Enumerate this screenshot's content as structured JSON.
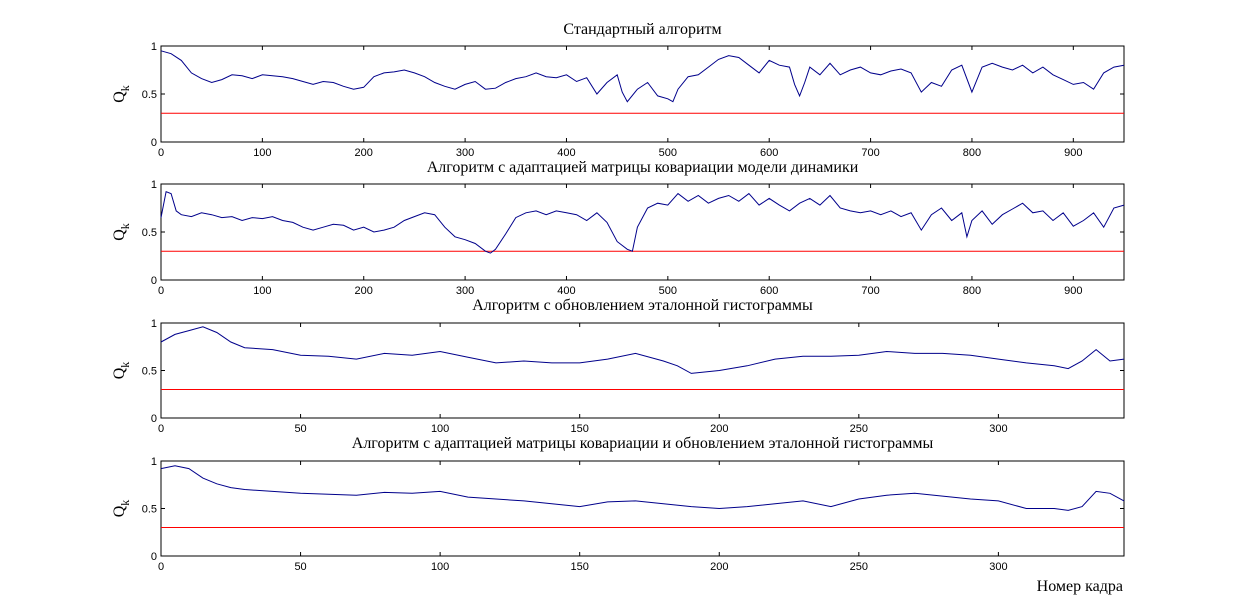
{
  "figure": {
    "xlabel": "Номер кадра"
  },
  "chart_data": [
    {
      "type": "line",
      "title": "Стандартный алгоритм",
      "ylabel_main": "Q",
      "ylabel_sub": "k",
      "xlim": [
        0,
        950
      ],
      "ylim": [
        0,
        1
      ],
      "xticks": [
        0,
        100,
        200,
        300,
        400,
        500,
        600,
        700,
        800,
        900
      ],
      "yticks": [
        0,
        0.5,
        1
      ],
      "threshold": {
        "y": 0.3,
        "color": "#ff0000"
      },
      "series": [
        {
          "color": "#00008b",
          "x": [
            0,
            10,
            20,
            30,
            40,
            50,
            60,
            70,
            80,
            90,
            100,
            110,
            120,
            130,
            140,
            150,
            160,
            170,
            180,
            190,
            200,
            210,
            220,
            230,
            240,
            250,
            260,
            270,
            280,
            290,
            300,
            310,
            320,
            330,
            340,
            350,
            360,
            370,
            380,
            390,
            400,
            410,
            420,
            430,
            440,
            450,
            455,
            460,
            470,
            480,
            490,
            500,
            505,
            510,
            520,
            530,
            540,
            550,
            560,
            570,
            580,
            590,
            600,
            610,
            620,
            625,
            630,
            635,
            640,
            650,
            660,
            670,
            680,
            690,
            700,
            710,
            720,
            730,
            740,
            750,
            760,
            770,
            780,
            790,
            800,
            810,
            820,
            830,
            840,
            850,
            860,
            870,
            880,
            890,
            900,
            910,
            920,
            930,
            940,
            950
          ],
          "y": [
            0.95,
            0.92,
            0.85,
            0.72,
            0.66,
            0.62,
            0.65,
            0.7,
            0.69,
            0.66,
            0.7,
            0.69,
            0.68,
            0.66,
            0.63,
            0.6,
            0.63,
            0.62,
            0.58,
            0.55,
            0.57,
            0.68,
            0.72,
            0.73,
            0.75,
            0.72,
            0.68,
            0.62,
            0.58,
            0.55,
            0.6,
            0.63,
            0.55,
            0.56,
            0.62,
            0.66,
            0.68,
            0.72,
            0.68,
            0.67,
            0.7,
            0.63,
            0.67,
            0.5,
            0.62,
            0.7,
            0.52,
            0.42,
            0.55,
            0.62,
            0.48,
            0.45,
            0.42,
            0.55,
            0.68,
            0.7,
            0.78,
            0.86,
            0.9,
            0.88,
            0.8,
            0.72,
            0.85,
            0.8,
            0.78,
            0.6,
            0.48,
            0.62,
            0.78,
            0.7,
            0.82,
            0.7,
            0.75,
            0.78,
            0.72,
            0.7,
            0.74,
            0.76,
            0.72,
            0.52,
            0.62,
            0.58,
            0.75,
            0.8,
            0.52,
            0.78,
            0.82,
            0.78,
            0.75,
            0.8,
            0.72,
            0.78,
            0.7,
            0.65,
            0.6,
            0.62,
            0.55,
            0.72,
            0.78,
            0.8
          ]
        }
      ]
    },
    {
      "type": "line",
      "title": "Алгоритм с адаптацией матрицы ковариации модели динамики",
      "ylabel_main": "Q",
      "ylabel_sub": "k",
      "xlim": [
        0,
        950
      ],
      "ylim": [
        0,
        1
      ],
      "xticks": [
        0,
        100,
        200,
        300,
        400,
        500,
        600,
        700,
        800,
        900
      ],
      "yticks": [
        0,
        0.5,
        1
      ],
      "threshold": {
        "y": 0.3,
        "color": "#ff0000"
      },
      "series": [
        {
          "color": "#00008b",
          "x": [
            0,
            5,
            10,
            15,
            20,
            30,
            40,
            50,
            60,
            70,
            80,
            90,
            100,
            110,
            120,
            130,
            140,
            150,
            160,
            170,
            180,
            190,
            200,
            210,
            220,
            230,
            240,
            250,
            260,
            270,
            280,
            290,
            300,
            310,
            320,
            325,
            330,
            340,
            350,
            360,
            370,
            380,
            390,
            400,
            410,
            420,
            430,
            440,
            450,
            460,
            465,
            470,
            480,
            490,
            500,
            510,
            520,
            530,
            540,
            550,
            560,
            570,
            580,
            590,
            600,
            610,
            620,
            630,
            640,
            650,
            660,
            670,
            680,
            690,
            700,
            710,
            720,
            730,
            740,
            750,
            760,
            770,
            780,
            790,
            795,
            800,
            810,
            820,
            830,
            840,
            850,
            860,
            870,
            880,
            890,
            900,
            910,
            920,
            930,
            940,
            950
          ],
          "y": [
            0.65,
            0.92,
            0.9,
            0.72,
            0.68,
            0.66,
            0.7,
            0.68,
            0.65,
            0.66,
            0.62,
            0.65,
            0.64,
            0.66,
            0.62,
            0.6,
            0.55,
            0.52,
            0.55,
            0.58,
            0.57,
            0.52,
            0.55,
            0.5,
            0.52,
            0.55,
            0.62,
            0.66,
            0.7,
            0.68,
            0.55,
            0.45,
            0.42,
            0.38,
            0.3,
            0.28,
            0.32,
            0.48,
            0.65,
            0.7,
            0.72,
            0.68,
            0.72,
            0.7,
            0.68,
            0.62,
            0.7,
            0.6,
            0.4,
            0.32,
            0.3,
            0.55,
            0.75,
            0.8,
            0.78,
            0.9,
            0.82,
            0.88,
            0.8,
            0.85,
            0.88,
            0.82,
            0.9,
            0.78,
            0.85,
            0.78,
            0.72,
            0.8,
            0.85,
            0.78,
            0.88,
            0.75,
            0.72,
            0.7,
            0.72,
            0.68,
            0.72,
            0.66,
            0.7,
            0.52,
            0.68,
            0.75,
            0.62,
            0.7,
            0.45,
            0.62,
            0.72,
            0.58,
            0.68,
            0.74,
            0.8,
            0.7,
            0.72,
            0.62,
            0.7,
            0.56,
            0.62,
            0.7,
            0.55,
            0.75,
            0.78
          ]
        }
      ]
    },
    {
      "type": "line",
      "title": "Алгоритм с обновлением эталонной гистограммы",
      "ylabel_main": "Q",
      "ylabel_sub": "k",
      "xlim": [
        0,
        345
      ],
      "ylim": [
        0,
        1
      ],
      "xticks": [
        0,
        50,
        100,
        150,
        200,
        250,
        300
      ],
      "yticks": [
        0,
        0.5,
        1
      ],
      "threshold": {
        "y": 0.3,
        "color": "#ff0000"
      },
      "series": [
        {
          "color": "#00008b",
          "x": [
            0,
            5,
            10,
            15,
            20,
            25,
            30,
            40,
            50,
            60,
            70,
            80,
            90,
            100,
            110,
            120,
            130,
            140,
            150,
            160,
            170,
            180,
            185,
            190,
            200,
            210,
            220,
            230,
            240,
            250,
            260,
            270,
            280,
            290,
            300,
            310,
            320,
            325,
            330,
            335,
            340,
            345
          ],
          "y": [
            0.8,
            0.88,
            0.92,
            0.96,
            0.9,
            0.8,
            0.74,
            0.72,
            0.66,
            0.65,
            0.62,
            0.68,
            0.66,
            0.7,
            0.64,
            0.58,
            0.6,
            0.58,
            0.58,
            0.62,
            0.68,
            0.6,
            0.55,
            0.47,
            0.5,
            0.55,
            0.62,
            0.65,
            0.65,
            0.66,
            0.7,
            0.68,
            0.68,
            0.66,
            0.62,
            0.58,
            0.55,
            0.52,
            0.6,
            0.72,
            0.6,
            0.62
          ]
        }
      ]
    },
    {
      "type": "line",
      "title": "Алгоритм с адаптацией матрицы ковариации и обновлением эталонной гистограммы",
      "ylabel_main": "Q",
      "ylabel_sub": "k",
      "xlim": [
        0,
        345
      ],
      "ylim": [
        0,
        1
      ],
      "xticks": [
        0,
        50,
        100,
        150,
        200,
        250,
        300
      ],
      "yticks": [
        0,
        0.5,
        1
      ],
      "threshold": {
        "y": 0.3,
        "color": "#ff0000"
      },
      "series": [
        {
          "color": "#00008b",
          "x": [
            0,
            5,
            10,
            15,
            20,
            25,
            30,
            40,
            50,
            60,
            70,
            80,
            90,
            100,
            110,
            120,
            130,
            140,
            150,
            160,
            170,
            180,
            190,
            200,
            210,
            220,
            230,
            240,
            250,
            260,
            270,
            280,
            290,
            300,
            310,
            320,
            325,
            330,
            335,
            340,
            345
          ],
          "y": [
            0.92,
            0.95,
            0.92,
            0.82,
            0.76,
            0.72,
            0.7,
            0.68,
            0.66,
            0.65,
            0.64,
            0.67,
            0.66,
            0.68,
            0.62,
            0.6,
            0.58,
            0.55,
            0.52,
            0.57,
            0.58,
            0.55,
            0.52,
            0.5,
            0.52,
            0.55,
            0.58,
            0.52,
            0.6,
            0.64,
            0.66,
            0.63,
            0.6,
            0.58,
            0.5,
            0.5,
            0.48,
            0.52,
            0.68,
            0.66,
            0.58
          ]
        }
      ]
    }
  ]
}
